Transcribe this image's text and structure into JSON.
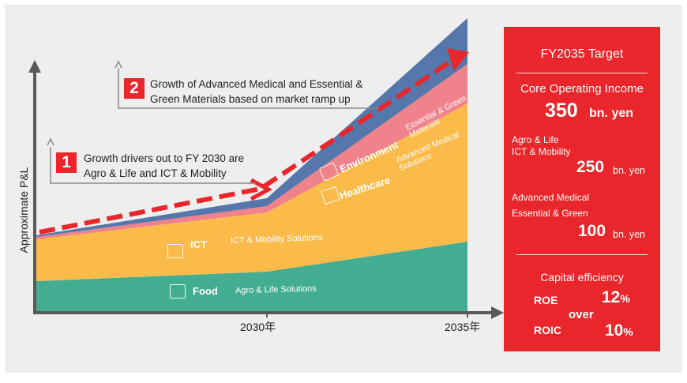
{
  "chart_data": {
    "type": "area",
    "stacked": true,
    "ylabel": "Approximate P&L",
    "x_ticks": [
      "2030年",
      "2035年"
    ],
    "x": [
      "start",
      "2030",
      "2035"
    ],
    "series": [
      {
        "name": "Food",
        "subtitle": "Agro & Life Solutions",
        "color": "#43ad91",
        "values": [
          38,
          50,
          88
        ]
      },
      {
        "name": "ICT",
        "subtitle": "ICT & Mobility Solutions",
        "color": "#fbbb4b",
        "values": [
          53,
          75,
          175
        ]
      },
      {
        "name": "Healthcare",
        "subtitle": "Advanced Medical Solutions",
        "color": "#f0828c",
        "values": [
          3,
          8,
          50
        ]
      },
      {
        "name": "Environment",
        "subtitle": "Essential & Green Materials",
        "color": "#5577ac",
        "values": [
          2,
          10,
          58
        ]
      }
    ],
    "trend_arrow": "dashed red arrow rising along the top of the stacked areas",
    "annotations": [
      {
        "number": "1",
        "text": [
          "Growth drivers out to FY 2030 are",
          "Agro & Life and ICT & Mobility"
        ]
      },
      {
        "number": "2",
        "text": [
          "Growth of Advanced Medical and Essential &",
          "Green Materials based on market ramp up"
        ]
      }
    ]
  },
  "target": {
    "title": "FY2035 Target",
    "core_label": "Core Operating Income",
    "core_value": "350",
    "core_unit": "bn. yen",
    "agro_label_1": "Agro & Life",
    "agro_label_2": "ICT & Mobility",
    "agro_value": "250",
    "agro_unit": "bn. yen",
    "adv_label_1": "Advanced Medical",
    "adv_label_2": "Essential & Green",
    "adv_value": "100",
    "adv_unit": "bn. yen",
    "capital_label": "Capital efficiency",
    "roe_label": "ROE",
    "roe_value": "12",
    "over_label": "over",
    "roic_label": "ROIC",
    "roic_value": "10",
    "pct": "%"
  },
  "colors": {
    "red": "#e8262b",
    "axis": "#595959",
    "food": "#43ad91",
    "ict": "#fbbb4b",
    "healthcare": "#f0828c",
    "environment": "#5577ac"
  }
}
